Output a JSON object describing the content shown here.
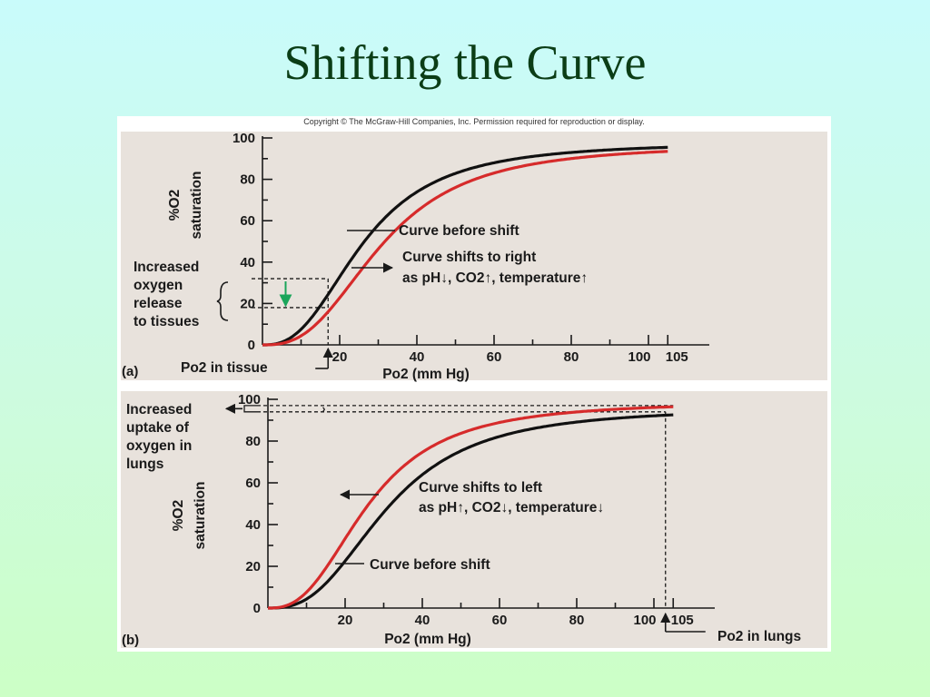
{
  "slide": {
    "title": "Shifting the Curve",
    "copyright": "Copyright © The McGraw-Hill Companies, Inc. Permission required for reproduction or display."
  },
  "colors": {
    "before": "#111111",
    "shifted": "#d62b2b",
    "arrow_green": "#1aa55a"
  },
  "chart_data": [
    {
      "panel": "(a)",
      "type": "line",
      "xlabel": "Po2 (mm Hg)",
      "ylabel_line1": "%O2",
      "ylabel_line2": "saturation",
      "xlim": [
        0,
        110
      ],
      "ylim": [
        0,
        100
      ],
      "x_ticks": [
        20,
        40,
        60,
        80,
        100,
        105
      ],
      "y_ticks": [
        0,
        20,
        40,
        60,
        80,
        100
      ],
      "series": [
        {
          "name": "Curve before shift",
          "color": "#111111",
          "p50": 26,
          "n": 2.6,
          "ymax": 98
        },
        {
          "name": "Curve shifts to right",
          "color": "#d62b2b",
          "p50": 31,
          "n": 2.7,
          "ymax": 97
        }
      ],
      "annotations": {
        "side_label": [
          "Increased",
          "oxygen",
          "release",
          "to tissues"
        ],
        "curve_before": "Curve before shift",
        "shift_line1": "Curve shifts to right",
        "shift_line2": "as pH↓, CO2↑, temperature↑",
        "x_marker": "Po2 in tissue",
        "x_marker_value": 17,
        "sat_before": 32,
        "sat_after": 18
      }
    },
    {
      "panel": "(b)",
      "type": "line",
      "xlabel": "Po2 (mm Hg)",
      "ylabel_line1": "%O2",
      "ylabel_line2": "saturation",
      "xlim": [
        0,
        110
      ],
      "ylim": [
        0,
        100
      ],
      "x_ticks": [
        20,
        40,
        60,
        80,
        100,
        105
      ],
      "y_ticks": [
        0,
        20,
        40,
        60,
        80,
        100
      ],
      "series": [
        {
          "name": "Curve before shift",
          "color": "#111111",
          "p50": 31,
          "n": 2.7,
          "ymax": 96
        },
        {
          "name": "Curve shifts to left",
          "color": "#d62b2b",
          "p50": 26,
          "n": 2.6,
          "ymax": 99
        }
      ],
      "annotations": {
        "side_label": [
          "Increased",
          "uptake of",
          "oxygen in",
          "lungs"
        ],
        "curve_before": "Curve before shift",
        "shift_line1": "Curve shifts to left",
        "shift_line2": "as pH↑, CO2↓, temperature↓",
        "x_marker": "Po2 in lungs",
        "x_marker_value": 103,
        "sat_before": 94,
        "sat_after": 97
      }
    }
  ]
}
